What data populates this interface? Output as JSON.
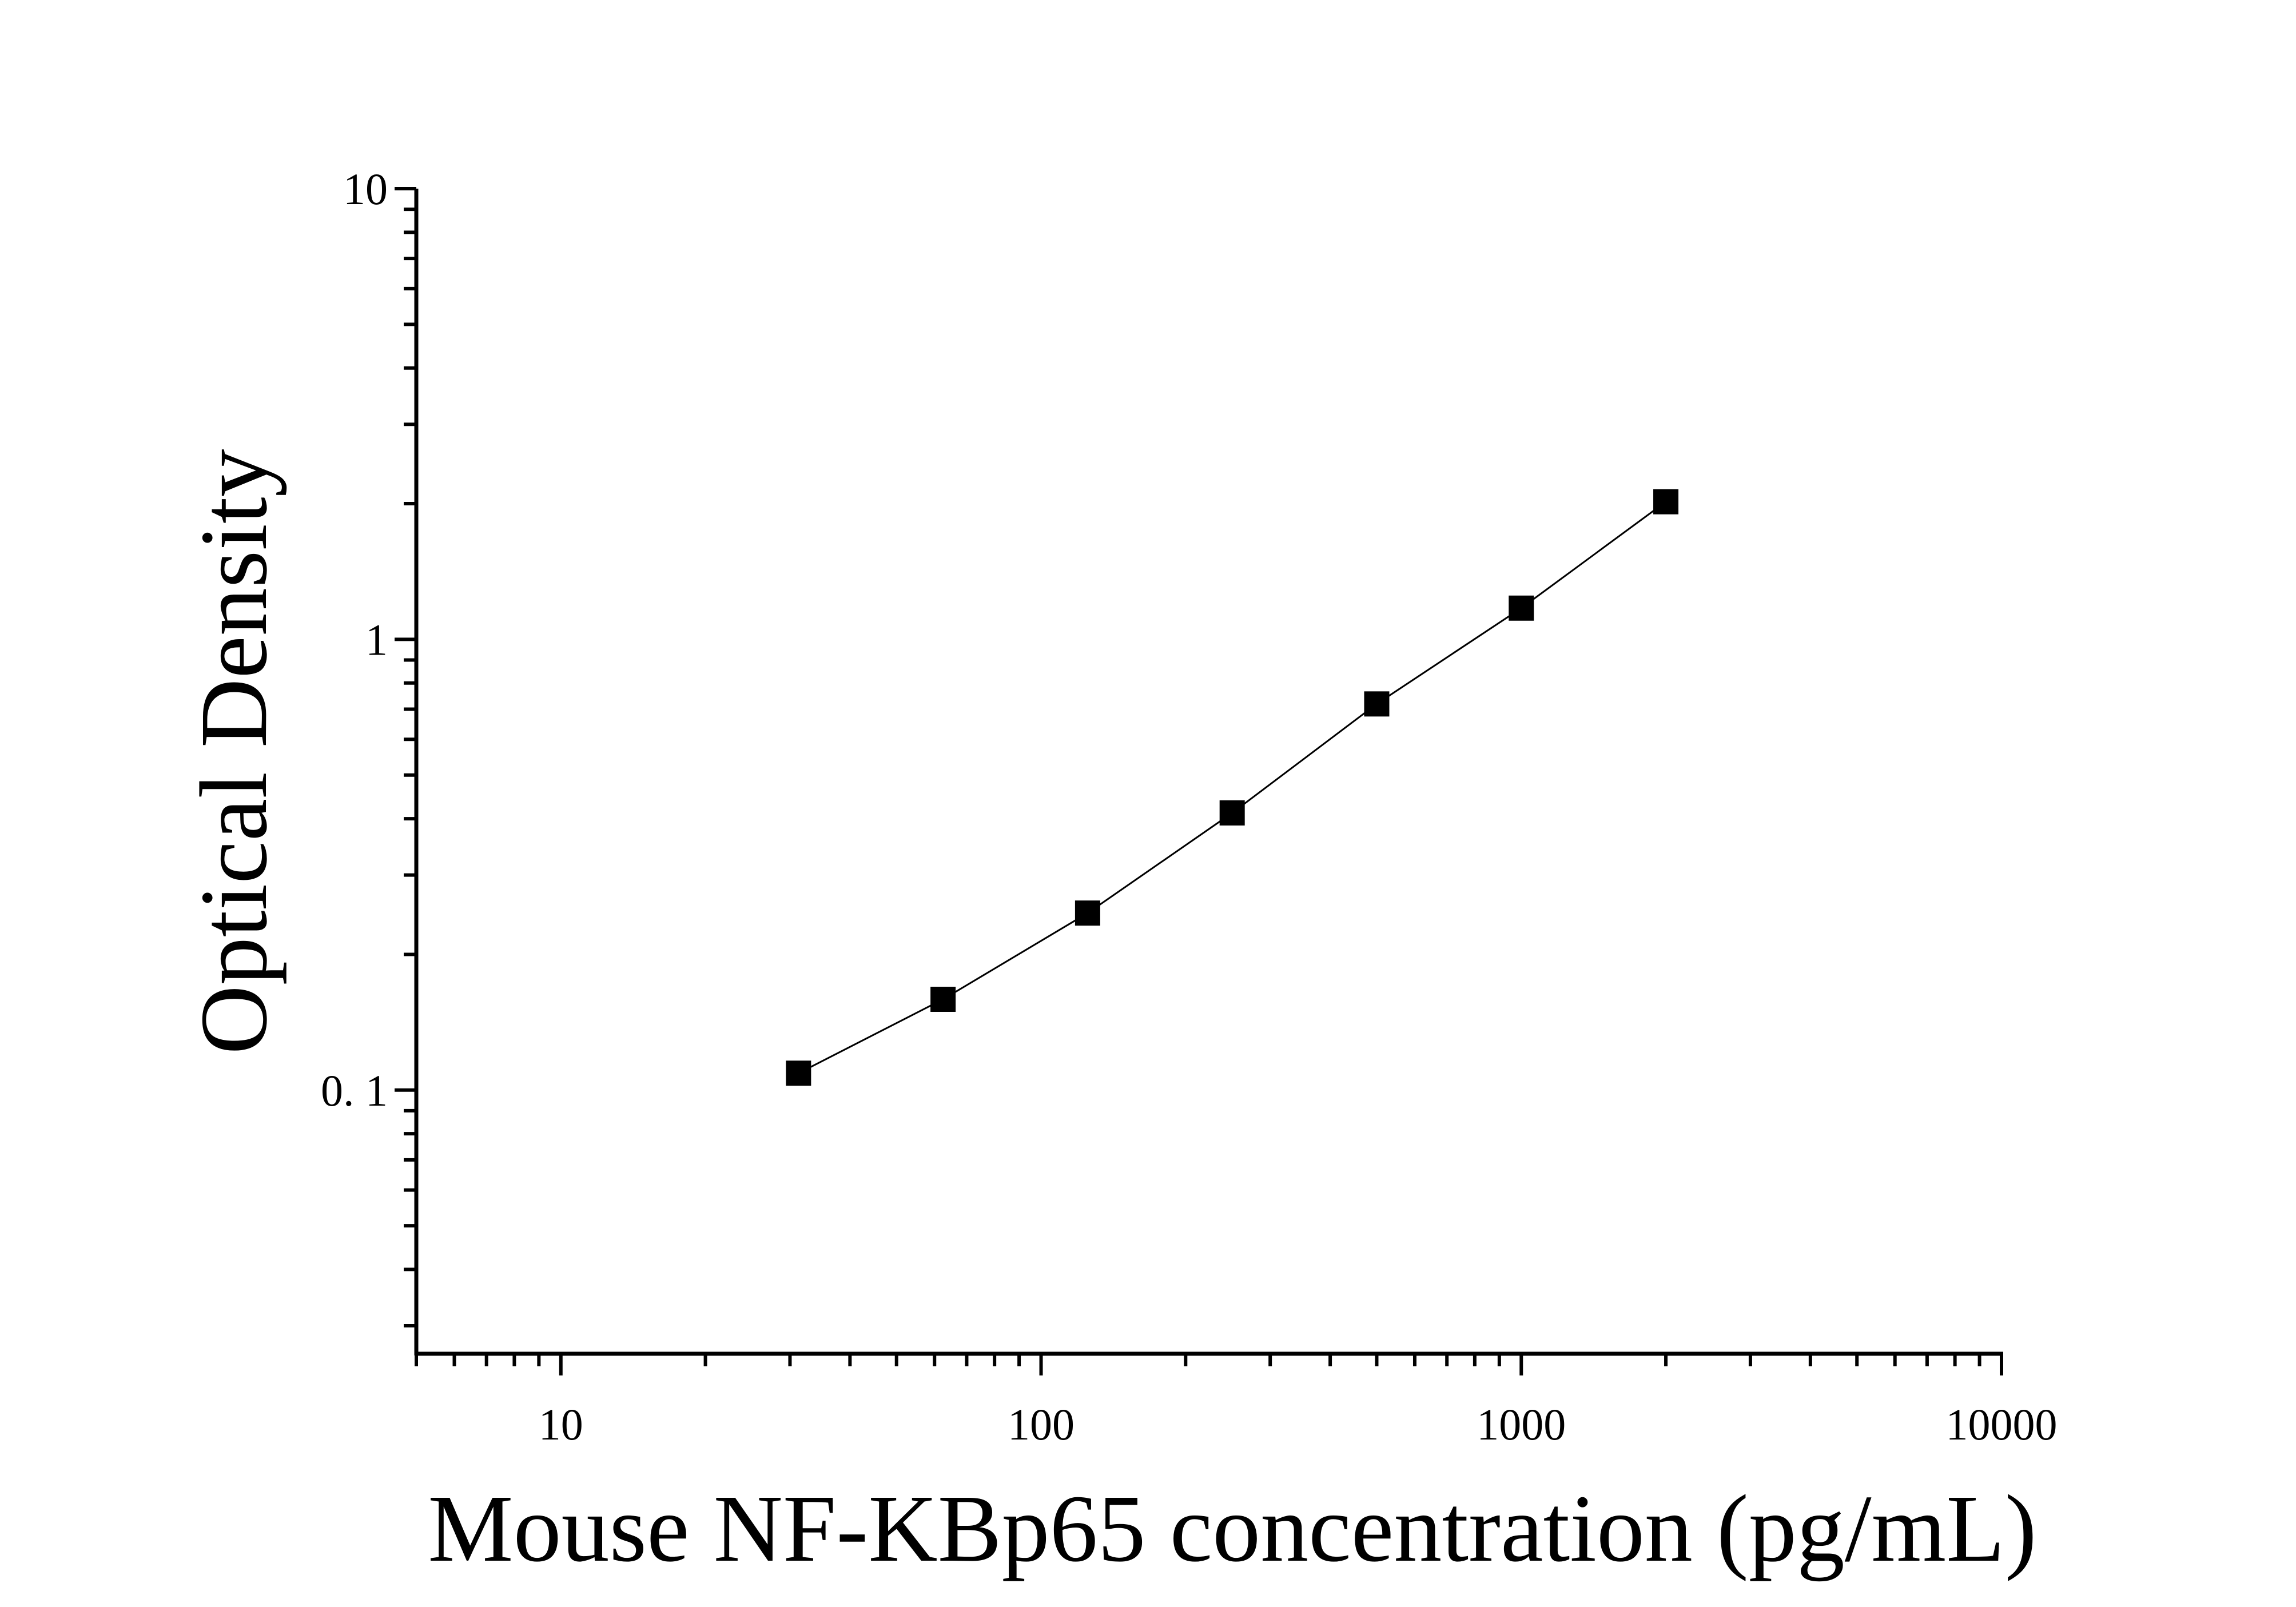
{
  "chart_data": {
    "type": "scatter",
    "title": "",
    "xlabel": "Mouse NF-KBp65 concentration (pg/mL)",
    "ylabel": "Optical Density",
    "x_scale": "log",
    "y_scale": "log",
    "xlim": [
      5,
      10000
    ],
    "ylim": [
      0.026,
      10
    ],
    "x_ticks": [
      10,
      100,
      1000,
      10000
    ],
    "x_tick_labels": [
      "10",
      "100",
      "1000",
      "10000"
    ],
    "y_ticks": [
      0.1,
      1,
      10
    ],
    "y_tick_labels": [
      "0. 1",
      "1",
      "10"
    ],
    "grid": false,
    "legend": "none",
    "series": [
      {
        "marker": "square",
        "line": true,
        "x": [
          31.25,
          62.5,
          125,
          250,
          500,
          1000,
          2000
        ],
        "y": [
          0.109,
          0.159,
          0.247,
          0.412,
          0.719,
          1.173,
          2.02
        ]
      }
    ],
    "colors": {
      "marker": "#000000",
      "line": "#000000",
      "axis": "#000000",
      "background": "#ffffff"
    }
  }
}
